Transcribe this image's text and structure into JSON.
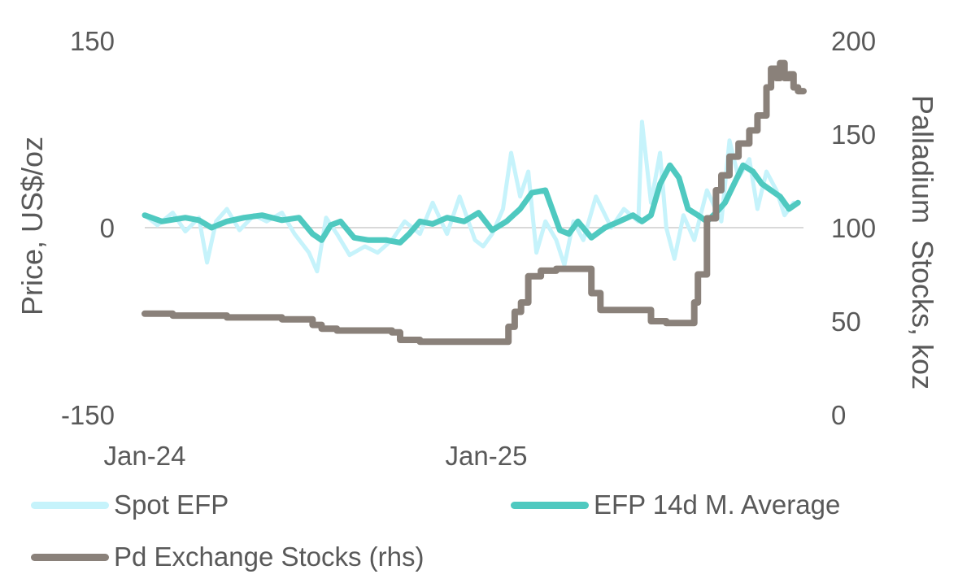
{
  "chart_data": {
    "type": "line",
    "ylabel_left": "Price, US$/oz",
    "ylabel_right": "Palladium  Stocks, koz",
    "ylim_left": [
      -150,
      150
    ],
    "ylim_right": [
      0,
      200
    ],
    "yticks_left": [
      "150",
      "0",
      "-150"
    ],
    "yticks_right": [
      "200",
      "150",
      "100",
      "50",
      "0"
    ],
    "xticks": [
      "Jan-24",
      "Jan-25"
    ],
    "xlim": [
      "2024-01",
      "2025-12"
    ],
    "gridline_zero": true,
    "legend_position": "bottom",
    "series": [
      {
        "name": "Spot EFP",
        "axis": "left",
        "color": "#c6f3fb",
        "points": [
          [
            "2024-01-01",
            10
          ],
          [
            "2024-01-15",
            2
          ],
          [
            "2024-02-01",
            12
          ],
          [
            "2024-02-15",
            -3
          ],
          [
            "2024-03-01",
            8
          ],
          [
            "2024-03-10",
            -28
          ],
          [
            "2024-03-20",
            5
          ],
          [
            "2024-04-01",
            15
          ],
          [
            "2024-04-15",
            -2
          ],
          [
            "2024-05-01",
            10
          ],
          [
            "2024-05-15",
            5
          ],
          [
            "2024-06-01",
            12
          ],
          [
            "2024-06-15",
            -5
          ],
          [
            "2024-07-01",
            -20
          ],
          [
            "2024-07-10",
            -35
          ],
          [
            "2024-07-20",
            8
          ],
          [
            "2024-08-01",
            -5
          ],
          [
            "2024-08-15",
            -22
          ],
          [
            "2024-09-01",
            -15
          ],
          [
            "2024-09-15",
            -20
          ],
          [
            "2024-10-01",
            -10
          ],
          [
            "2024-10-15",
            5
          ],
          [
            "2024-11-01",
            -5
          ],
          [
            "2024-11-15",
            20
          ],
          [
            "2024-12-01",
            -5
          ],
          [
            "2024-12-15",
            25
          ],
          [
            "2025-01-01",
            -10
          ],
          [
            "2025-01-10",
            -15
          ],
          [
            "2025-01-20",
            -5
          ],
          [
            "2025-02-01",
            15
          ],
          [
            "2025-02-10",
            60
          ],
          [
            "2025-02-20",
            25
          ],
          [
            "2025-03-01",
            45
          ],
          [
            "2025-03-10",
            -20
          ],
          [
            "2025-03-20",
            5
          ],
          [
            "2025-04-01",
            -10
          ],
          [
            "2025-04-10",
            -30
          ],
          [
            "2025-04-20",
            5
          ],
          [
            "2025-05-01",
            -10
          ],
          [
            "2025-05-15",
            25
          ],
          [
            "2025-06-01",
            0
          ],
          [
            "2025-06-15",
            15
          ],
          [
            "2025-07-01",
            5
          ],
          [
            "2025-07-05",
            85
          ],
          [
            "2025-07-15",
            20
          ],
          [
            "2025-07-25",
            60
          ],
          [
            "2025-08-01",
            0
          ],
          [
            "2025-08-10",
            -25
          ],
          [
            "2025-08-20",
            10
          ],
          [
            "2025-09-01",
            -10
          ],
          [
            "2025-09-15",
            30
          ],
          [
            "2025-10-01",
            5
          ],
          [
            "2025-10-10",
            70
          ],
          [
            "2025-10-20",
            40
          ],
          [
            "2025-11-01",
            55
          ],
          [
            "2025-11-10",
            15
          ],
          [
            "2025-11-20",
            45
          ],
          [
            "2025-12-01",
            30
          ],
          [
            "2025-12-10",
            10
          ],
          [
            "2025-12-20",
            20
          ]
        ]
      },
      {
        "name": "EFP 14d M. Average",
        "axis": "left",
        "color": "#4fc9c0",
        "points": [
          [
            "2024-01-01",
            10
          ],
          [
            "2024-01-20",
            5
          ],
          [
            "2024-02-15",
            8
          ],
          [
            "2024-03-01",
            6
          ],
          [
            "2024-03-15",
            0
          ],
          [
            "2024-04-01",
            5
          ],
          [
            "2024-04-20",
            8
          ],
          [
            "2024-05-10",
            10
          ],
          [
            "2024-06-01",
            6
          ],
          [
            "2024-06-20",
            8
          ],
          [
            "2024-07-05",
            -5
          ],
          [
            "2024-07-15",
            -10
          ],
          [
            "2024-07-25",
            2
          ],
          [
            "2024-08-05",
            5
          ],
          [
            "2024-08-20",
            -8
          ],
          [
            "2024-09-05",
            -10
          ],
          [
            "2024-09-25",
            -10
          ],
          [
            "2024-10-10",
            -12
          ],
          [
            "2024-10-20",
            -5
          ],
          [
            "2024-11-01",
            5
          ],
          [
            "2024-11-15",
            3
          ],
          [
            "2024-12-01",
            8
          ],
          [
            "2024-12-20",
            5
          ],
          [
            "2025-01-05",
            12
          ],
          [
            "2025-01-20",
            -2
          ],
          [
            "2025-02-05",
            5
          ],
          [
            "2025-02-20",
            15
          ],
          [
            "2025-03-05",
            28
          ],
          [
            "2025-03-20",
            30
          ],
          [
            "2025-04-05",
            -2
          ],
          [
            "2025-04-15",
            -5
          ],
          [
            "2025-04-25",
            5
          ],
          [
            "2025-05-10",
            -8
          ],
          [
            "2025-05-25",
            0
          ],
          [
            "2025-06-10",
            5
          ],
          [
            "2025-06-25",
            10
          ],
          [
            "2025-07-05",
            5
          ],
          [
            "2025-07-15",
            10
          ],
          [
            "2025-07-25",
            35
          ],
          [
            "2025-08-05",
            50
          ],
          [
            "2025-08-15",
            40
          ],
          [
            "2025-08-25",
            15
          ],
          [
            "2025-09-05",
            10
          ],
          [
            "2025-09-15",
            5
          ],
          [
            "2025-09-25",
            12
          ],
          [
            "2025-10-05",
            20
          ],
          [
            "2025-10-15",
            35
          ],
          [
            "2025-10-25",
            50
          ],
          [
            "2025-11-05",
            45
          ],
          [
            "2025-11-15",
            35
          ],
          [
            "2025-11-25",
            30
          ],
          [
            "2025-12-05",
            25
          ],
          [
            "2025-12-15",
            15
          ],
          [
            "2025-12-25",
            20
          ]
        ]
      },
      {
        "name": "Pd Exchange Stocks (rhs)",
        "axis": "right",
        "color": "#8a817a",
        "step": true,
        "points": [
          [
            "2024-01-01",
            54
          ],
          [
            "2024-02-01",
            53
          ],
          [
            "2024-03-01",
            53
          ],
          [
            "2024-04-01",
            52
          ],
          [
            "2024-05-01",
            52
          ],
          [
            "2024-06-01",
            51
          ],
          [
            "2024-06-20",
            51
          ],
          [
            "2024-07-05",
            48
          ],
          [
            "2024-07-15",
            46
          ],
          [
            "2024-08-01",
            45
          ],
          [
            "2024-09-01",
            45
          ],
          [
            "2024-10-01",
            44
          ],
          [
            "2024-10-10",
            40
          ],
          [
            "2024-11-01",
            39
          ],
          [
            "2024-12-01",
            39
          ],
          [
            "2025-01-01",
            39
          ],
          [
            "2025-02-01",
            39
          ],
          [
            "2025-02-07",
            47
          ],
          [
            "2025-02-14",
            55
          ],
          [
            "2025-02-21",
            60
          ],
          [
            "2025-03-01",
            74
          ],
          [
            "2025-03-15",
            77
          ],
          [
            "2025-04-01",
            78
          ],
          [
            "2025-05-01",
            78
          ],
          [
            "2025-05-10",
            65
          ],
          [
            "2025-05-20",
            56
          ],
          [
            "2025-06-01",
            56
          ],
          [
            "2025-07-01",
            56
          ],
          [
            "2025-07-15",
            50
          ],
          [
            "2025-08-01",
            49
          ],
          [
            "2025-08-20",
            49
          ],
          [
            "2025-09-01",
            60
          ],
          [
            "2025-09-05",
            75
          ],
          [
            "2025-09-15",
            105
          ],
          [
            "2025-09-25",
            120
          ],
          [
            "2025-10-01",
            128
          ],
          [
            "2025-10-10",
            138
          ],
          [
            "2025-10-20",
            145
          ],
          [
            "2025-11-01",
            152
          ],
          [
            "2025-11-10",
            160
          ],
          [
            "2025-11-20",
            175
          ],
          [
            "2025-11-25",
            185
          ],
          [
            "2025-12-01",
            180
          ],
          [
            "2025-12-05",
            188
          ],
          [
            "2025-12-10",
            180
          ],
          [
            "2025-12-15",
            182
          ],
          [
            "2025-12-20",
            175
          ],
          [
            "2025-12-25",
            173
          ],
          [
            "2025-12-31",
            173
          ]
        ]
      }
    ]
  }
}
